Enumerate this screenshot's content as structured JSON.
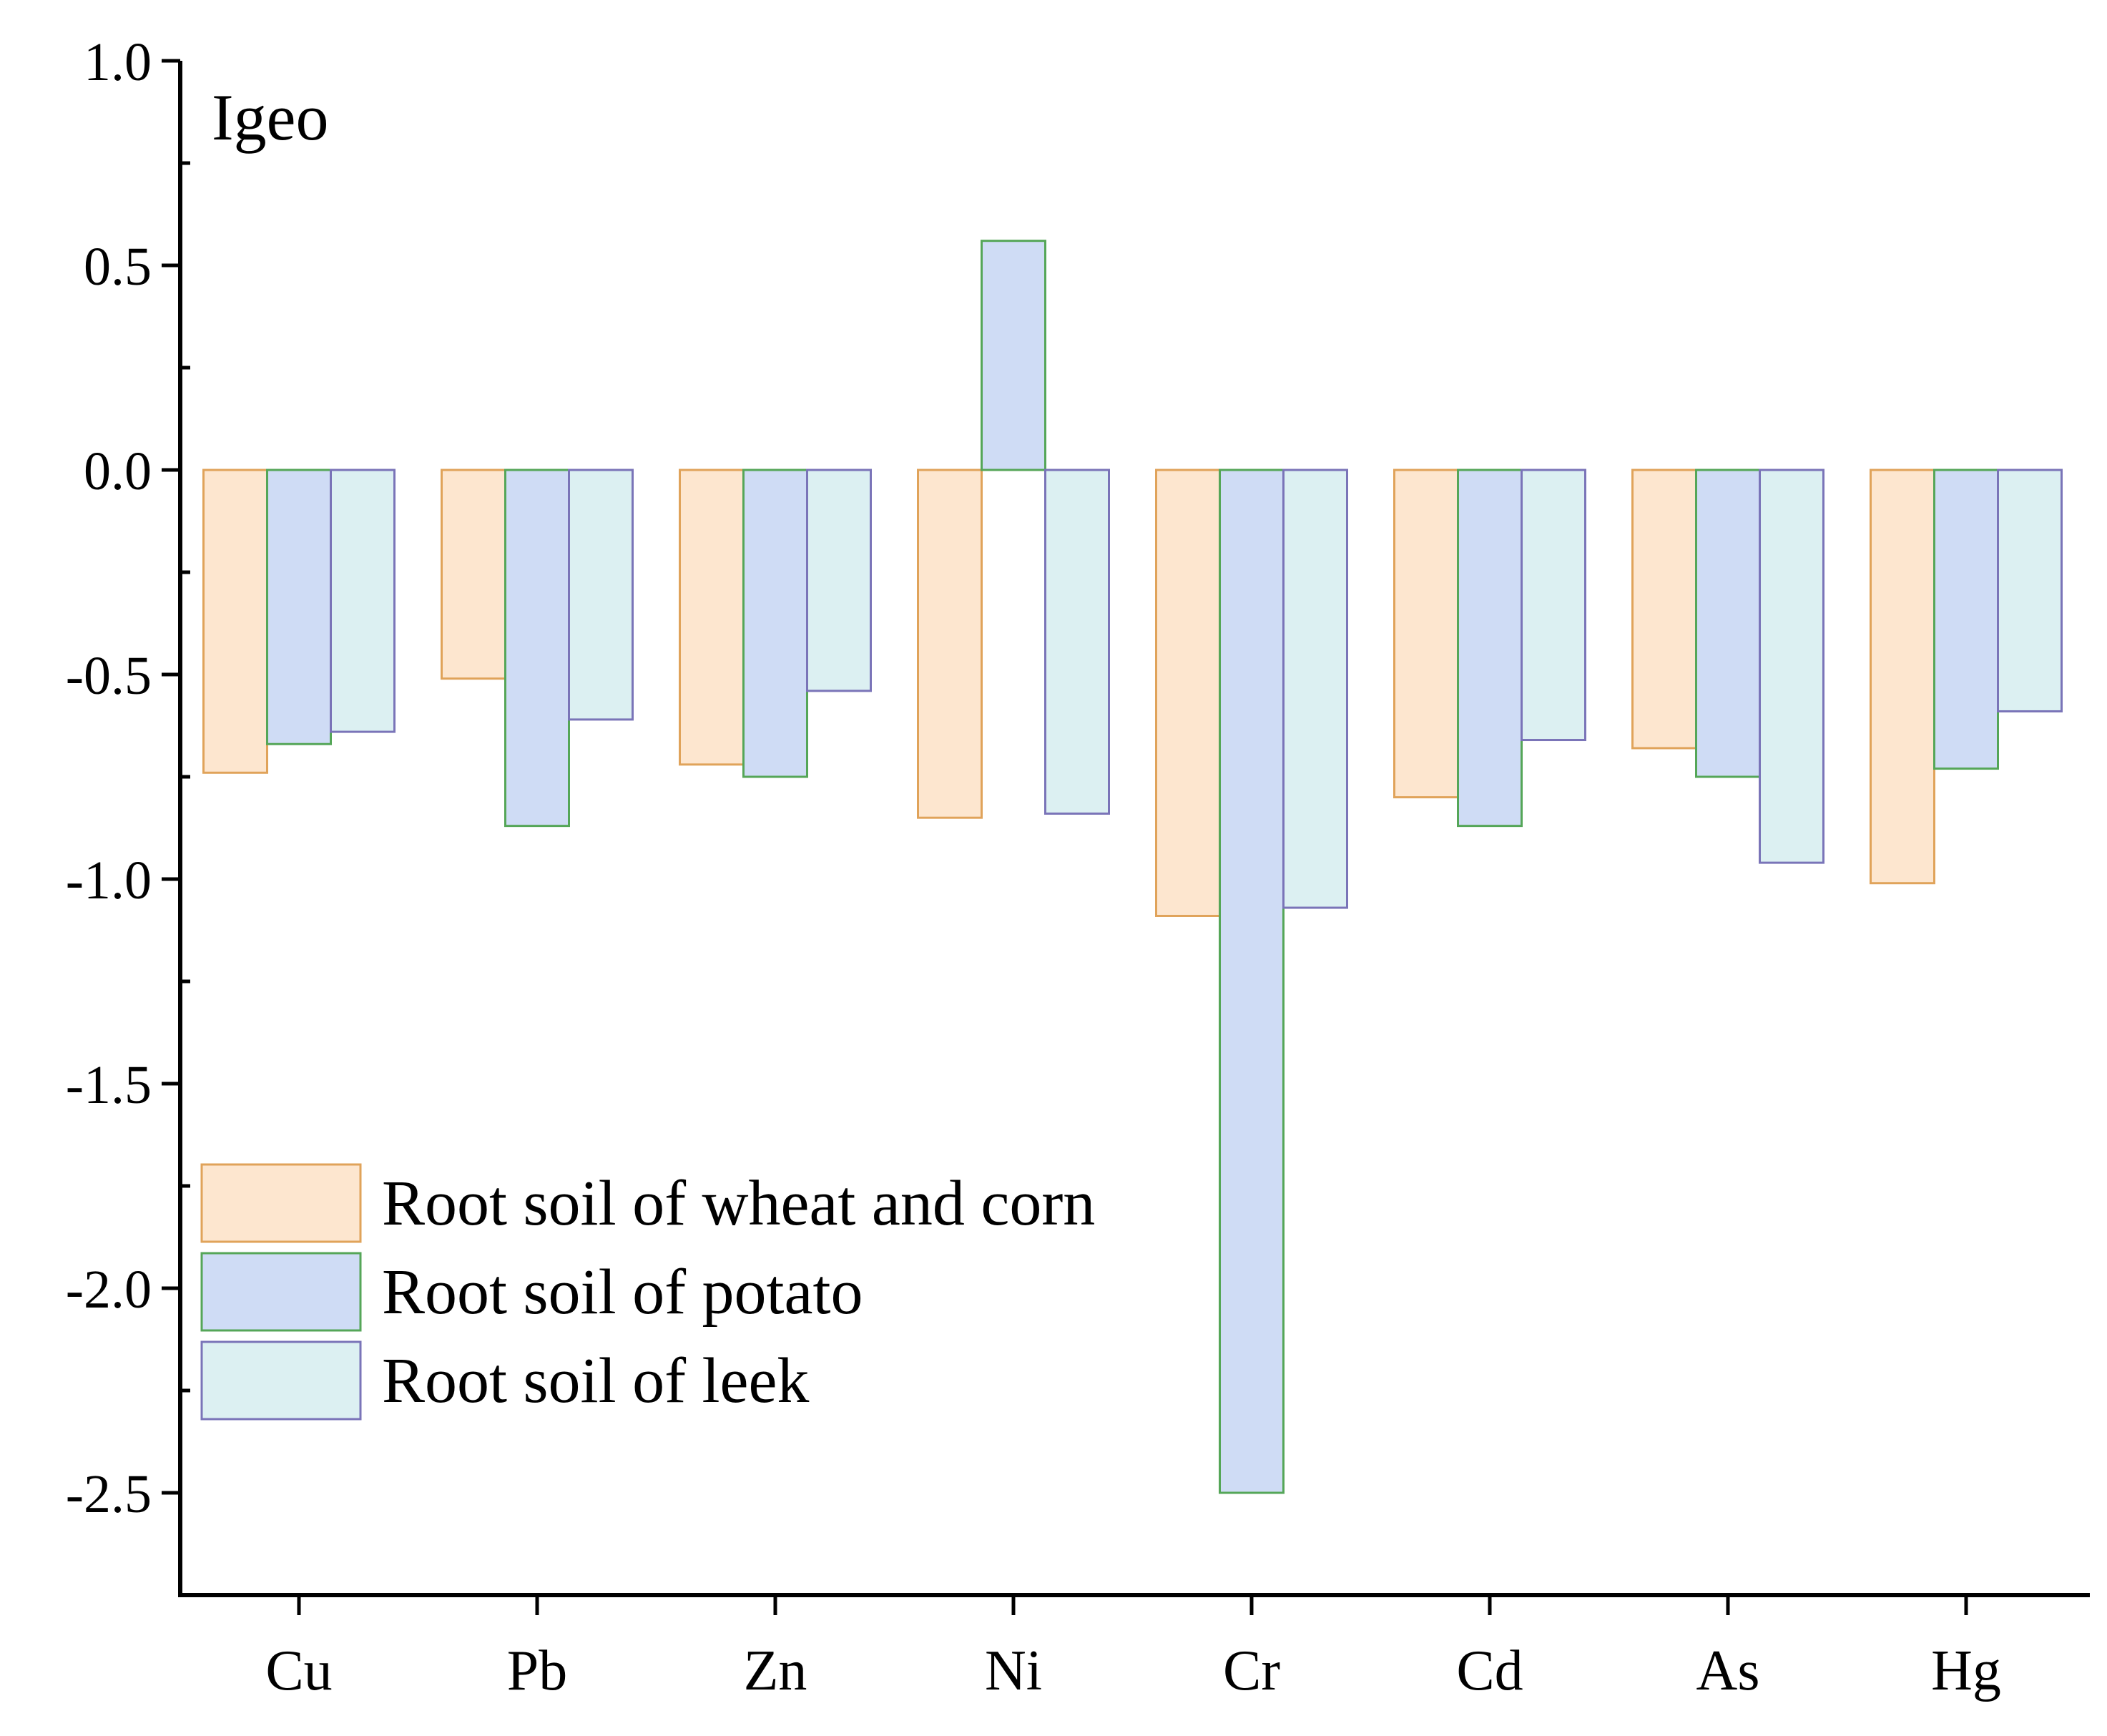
{
  "chart_data": {
    "type": "bar",
    "title": "",
    "ylabel": "Igeo",
    "xlabel": "",
    "ylim": [
      -2.75,
      1.0
    ],
    "yticks": [
      1.0,
      0.5,
      0.0,
      -0.5,
      -1.0,
      -1.5,
      -2.0,
      -2.5
    ],
    "ytick_labels": [
      "1.0",
      "0.5",
      "0.0",
      "-0.5",
      "-1.0",
      "-1.5",
      "-2.0",
      "-2.5"
    ],
    "categories": [
      "Cu",
      "Pb",
      "Zn",
      "Ni",
      "Cr",
      "Cd",
      "As",
      "Hg"
    ],
    "grid": false,
    "legend_position": "bottom-left",
    "series": [
      {
        "name": "Root soil of wheat and corn",
        "fill": "#fde6cf",
        "stroke": "#e0a35a",
        "values": [
          -0.74,
          -0.51,
          -0.72,
          -0.85,
          -1.09,
          -0.8,
          -0.68,
          -1.01
        ]
      },
      {
        "name": "Root soil of potato",
        "fill": "#cfdcf5",
        "stroke": "#55a658",
        "values": [
          -0.67,
          -0.87,
          -0.75,
          0.56,
          -2.5,
          -0.87,
          -0.75,
          -0.73
        ]
      },
      {
        "name": "Root soil of leek",
        "fill": "#dcf0f2",
        "stroke": "#7a74b8",
        "values": [
          -0.64,
          -0.61,
          -0.54,
          -0.84,
          -1.07,
          -0.66,
          -0.96,
          -0.59
        ]
      }
    ]
  }
}
